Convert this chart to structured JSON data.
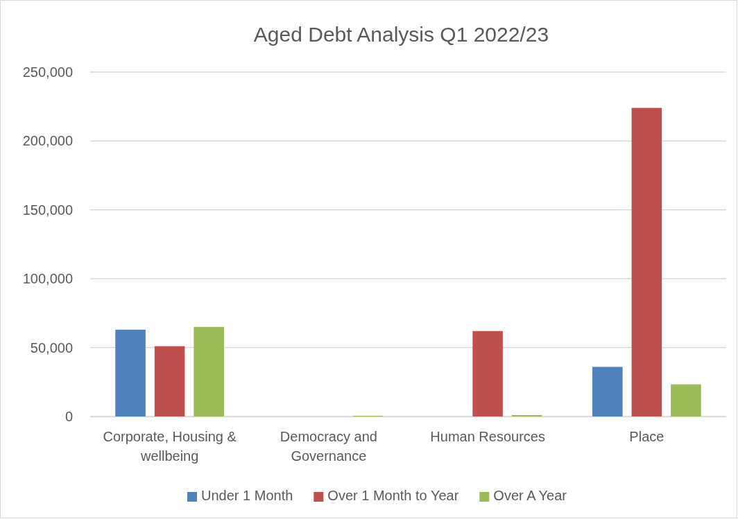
{
  "chart_data": {
    "type": "bar",
    "title": "Aged Debt Analysis Q1 2022/23",
    "categories": [
      "Corporate, Housing & wellbeing",
      "Democracy and Governance",
      "Human Resources",
      "Place"
    ],
    "series": [
      {
        "name": "Under 1 Month",
        "color": "#4f81bd",
        "values": [
          63000,
          0,
          0,
          36000
        ]
      },
      {
        "name": "Over 1 Month to Year",
        "color": "#c0504d",
        "values": [
          51000,
          0,
          62000,
          224000
        ]
      },
      {
        "name": "Over A Year",
        "color": "#9bbb59",
        "values": [
          65000,
          500,
          1000,
          23300
        ]
      }
    ],
    "ylim": [
      0,
      250000
    ],
    "yticks": [
      {
        "value": 0,
        "label": "0"
      },
      {
        "value": 50000,
        "label": "50,000"
      },
      {
        "value": 100000,
        "label": "100,000"
      },
      {
        "value": 150000,
        "label": "150,000"
      },
      {
        "value": 200000,
        "label": "200,000"
      },
      {
        "value": 250000,
        "label": "250,000"
      }
    ],
    "grid": "y",
    "legend": "bottom"
  }
}
